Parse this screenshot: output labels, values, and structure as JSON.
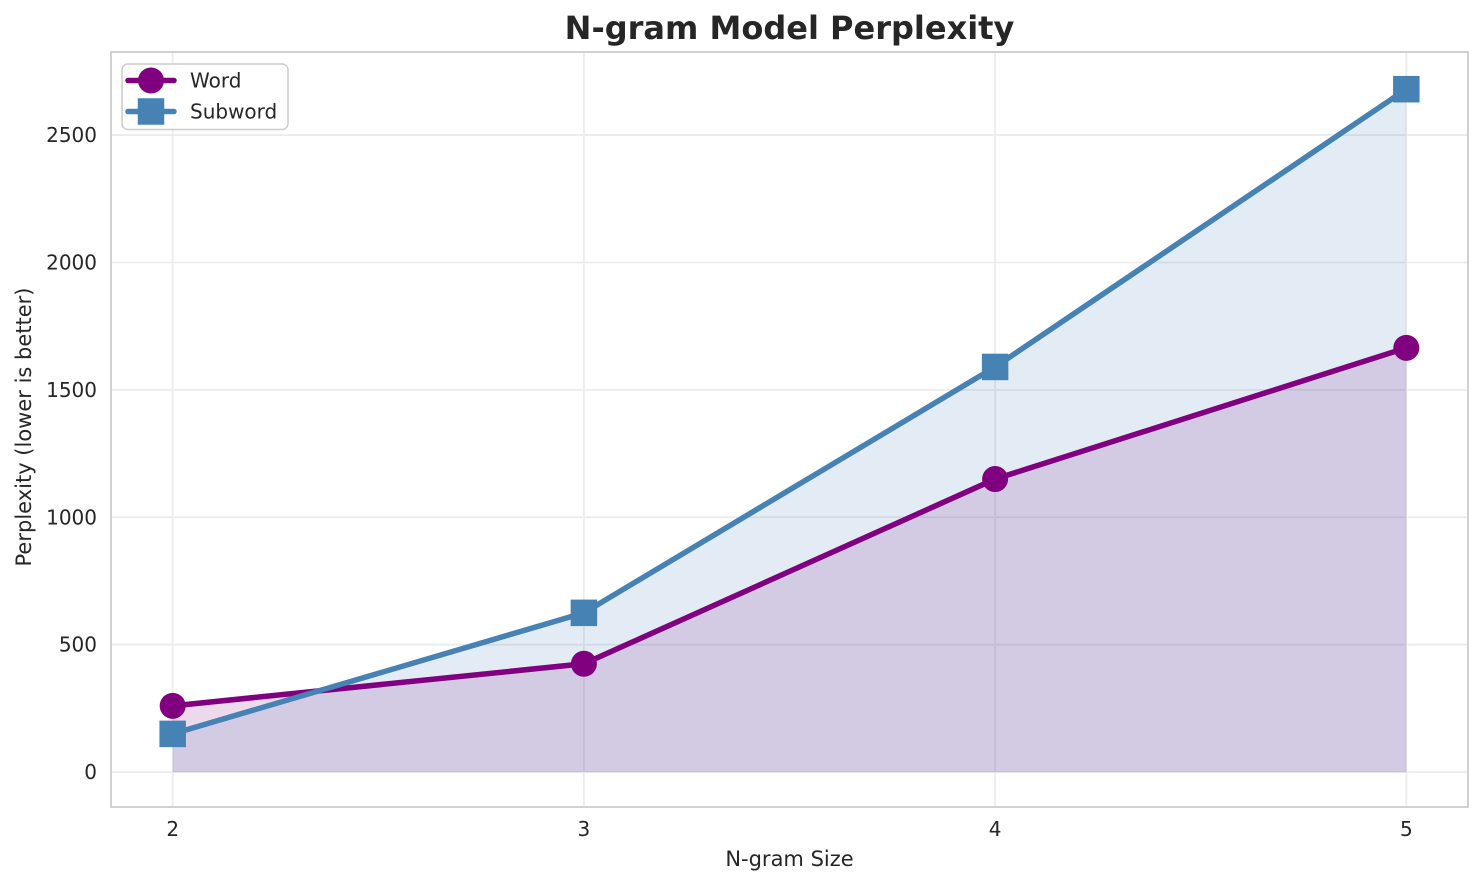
{
  "chart_data": {
    "type": "line",
    "title": "N-gram Model Perplexity",
    "xlabel": "N-gram Size",
    "ylabel": "Perplexity (lower is better)",
    "x": [
      2,
      3,
      4,
      5
    ],
    "series": [
      {
        "name": "Word",
        "marker": "circle",
        "color": "#800080",
        "values": [
          260,
          425,
          1150,
          1665
        ]
      },
      {
        "name": "Subword",
        "marker": "square",
        "color": "#4682B4",
        "values": [
          150,
          625,
          1590,
          2680
        ]
      }
    ],
    "area_fill": true,
    "fill_alpha": 0.15,
    "fill_baseline": 0,
    "xticks": [
      "2",
      "3",
      "4",
      "5"
    ],
    "xtick_values": [
      2,
      3,
      4,
      5
    ],
    "yticks": [
      "0",
      "500",
      "1000",
      "1500",
      "2000",
      "2500"
    ],
    "ytick_values": [
      0,
      500,
      1000,
      1500,
      2000,
      2500
    ],
    "xlim": [
      1.85,
      5.15
    ],
    "ylim": [
      -137,
      2826
    ],
    "grid": true,
    "legend_position": "upper left",
    "colors": {
      "text": "#262626",
      "grid": "#ececec",
      "spine": "#cccccc",
      "plot_background": "#ffffff",
      "legend_border": "#cccccc",
      "legend_background": "#ffffff"
    }
  }
}
